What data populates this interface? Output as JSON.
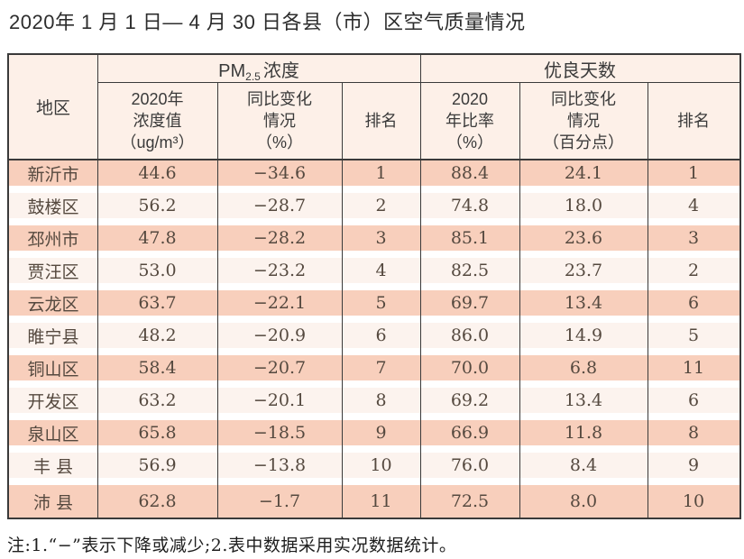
{
  "title": "2020年 1 月 1 日— 4 月 30 日各县（市）区空气质量情况",
  "table": {
    "columns": {
      "region": "地区",
      "pm25_group": {
        "base": "PM",
        "sub": "2.5",
        "rest": "浓度"
      },
      "good_group": "优良天数",
      "pm25_value": "2020年\n浓度值\n（ug/m³）",
      "pm25_change": "同比变化\n情况\n（%）",
      "pm25_rank": "排名",
      "good_ratio": "2020\n年比率\n（%）",
      "good_change": "同比变化\n情况\n（百分点）",
      "good_rank": "排名"
    },
    "rows": [
      {
        "region": "新沂市",
        "pm25": "44.6",
        "pm25_change": "−34.6",
        "pm25_rank": "1",
        "ratio": "88.4",
        "ratio_change": "24.1",
        "ratio_rank": "1"
      },
      {
        "region": "鼓楼区",
        "pm25": "56.2",
        "pm25_change": "−28.7",
        "pm25_rank": "2",
        "ratio": "74.8",
        "ratio_change": "18.0",
        "ratio_rank": "4"
      },
      {
        "region": "邳州市",
        "pm25": "47.8",
        "pm25_change": "−28.2",
        "pm25_rank": "3",
        "ratio": "85.1",
        "ratio_change": "23.6",
        "ratio_rank": "3"
      },
      {
        "region": "贾汪区",
        "pm25": "53.0",
        "pm25_change": "−23.2",
        "pm25_rank": "4",
        "ratio": "82.5",
        "ratio_change": "23.7",
        "ratio_rank": "2"
      },
      {
        "region": "云龙区",
        "pm25": "63.7",
        "pm25_change": "−22.1",
        "pm25_rank": "5",
        "ratio": "69.7",
        "ratio_change": "13.4",
        "ratio_rank": "6"
      },
      {
        "region": "睢宁县",
        "pm25": "48.2",
        "pm25_change": "−20.9",
        "pm25_rank": "6",
        "ratio": "86.0",
        "ratio_change": "14.9",
        "ratio_rank": "5"
      },
      {
        "region": "铜山区",
        "pm25": "58.4",
        "pm25_change": "−20.7",
        "pm25_rank": "7",
        "ratio": "70.0",
        "ratio_change": "6.8",
        "ratio_rank": "11"
      },
      {
        "region": "开发区",
        "pm25": "63.2",
        "pm25_change": "−20.1",
        "pm25_rank": "8",
        "ratio": "69.2",
        "ratio_change": "13.4",
        "ratio_rank": "6"
      },
      {
        "region": "泉山区",
        "pm25": "65.8",
        "pm25_change": "−18.5",
        "pm25_rank": "9",
        "ratio": "66.9",
        "ratio_change": "11.8",
        "ratio_rank": "8"
      },
      {
        "region": "丰 县",
        "pm25": "56.9",
        "pm25_change": "−13.8",
        "pm25_rank": "10",
        "ratio": "76.0",
        "ratio_change": "8.4",
        "ratio_rank": "9"
      },
      {
        "region": "沛 县",
        "pm25": "62.8",
        "pm25_change": "−1.7",
        "pm25_rank": "11",
        "ratio": "72.5",
        "ratio_change": "8.0",
        "ratio_rank": "10"
      }
    ]
  },
  "note": "注:1.“−”表示下降或减少;2.表中数据采用实况数据统计。",
  "colors": {
    "row_odd": "#f8cfbc",
    "row_even": "#fcf3ee",
    "header_bg": "#fdf0e8",
    "border_dark": "#3a3a3a",
    "text_data": "#55493f"
  }
}
